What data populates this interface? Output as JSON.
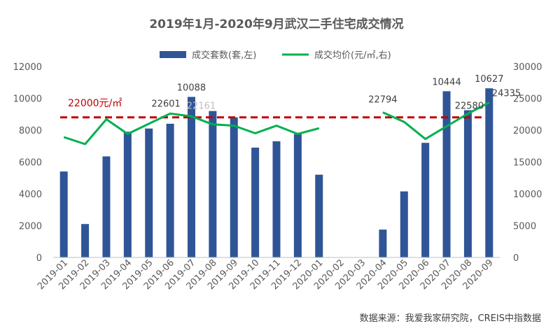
{
  "chart_data": {
    "type": "bar+line",
    "title": "2019年1月-2020年9月武汉二手住宅成交情况",
    "categories": [
      "2019-01",
      "2019-02",
      "2019-03",
      "2019-04",
      "2019-05",
      "2019-06",
      "2019-07",
      "2019-08",
      "2019-09",
      "2019-10",
      "2019-11",
      "2019-12",
      "2020-01",
      "2020-02",
      "2020-03",
      "2020-04",
      "2020-05",
      "2020-06",
      "2020-07",
      "2020-08",
      "2020-09"
    ],
    "series": [
      {
        "name": "成交套数(套,左)",
        "type": "bar",
        "axis": "left",
        "color": "#2f5597",
        "values": [
          5400,
          2100,
          6350,
          7900,
          8100,
          8400,
          10088,
          9200,
          8800,
          6900,
          7300,
          7750,
          5200,
          null,
          null,
          1750,
          4150,
          7200,
          10444,
          9250,
          10627
        ]
      },
      {
        "name": "成交均价(元/㎡,右)",
        "type": "line",
        "axis": "right",
        "color": "#00b050",
        "values": [
          18900,
          17800,
          21700,
          19400,
          21000,
          22601,
          22161,
          20900,
          20700,
          19500,
          20700,
          19400,
          20300,
          null,
          null,
          22794,
          21300,
          18600,
          20600,
          22580,
          24335
        ]
      }
    ],
    "data_labels": {
      "bars": [
        {
          "index": 6,
          "text": "10088"
        },
        {
          "index": 18,
          "text": "10444"
        },
        {
          "index": 20,
          "text": "10627"
        }
      ],
      "line": [
        {
          "index": 5,
          "text": "22601"
        },
        {
          "index": 6,
          "text": "22161"
        },
        {
          "index": 15,
          "text": "22794"
        },
        {
          "index": 19,
          "text": "22580"
        },
        {
          "index": 20,
          "text": "24335"
        }
      ]
    },
    "reference_line": {
      "value": 22000,
      "axis": "right",
      "label": "22000元/㎡",
      "color": "#c00000"
    },
    "y_left": {
      "min": 0,
      "max": 12000,
      "ticks": [
        "0",
        "2000",
        "4000",
        "6000",
        "8000",
        "10000",
        "12000"
      ]
    },
    "y_right": {
      "min": 0,
      "max": 30000,
      "ticks": [
        "0",
        "5000",
        "10000",
        "15000",
        "20000",
        "25000",
        "30000"
      ]
    },
    "legend_position": "top-center",
    "grid": false
  },
  "source": "数据来源：我爱我家研究院，CREIS中指数据"
}
